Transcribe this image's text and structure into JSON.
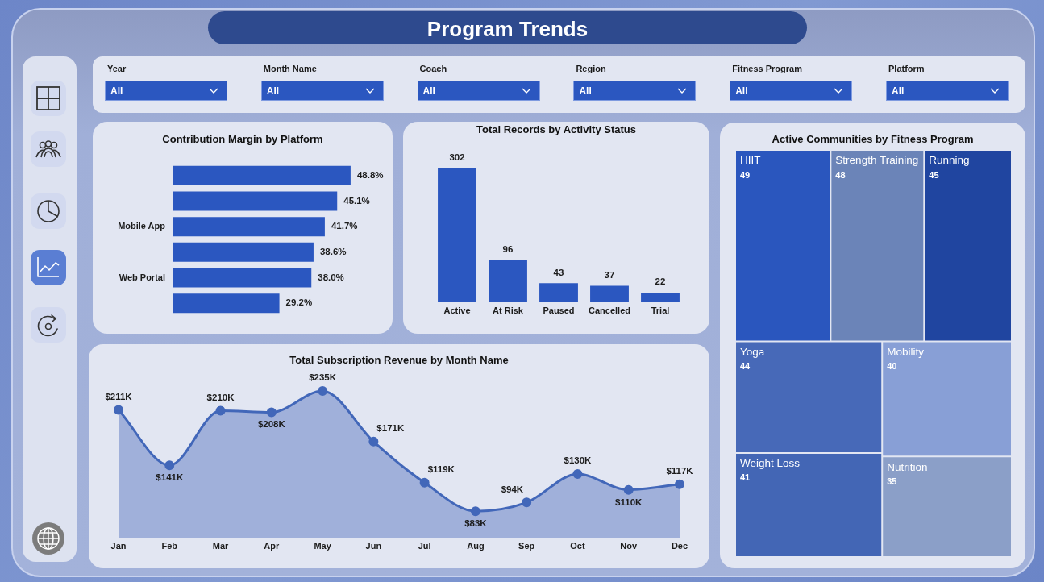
{
  "chart_data": [
    {
      "type": "other",
      "title": "Program Trends"
    },
    {
      "type": "other",
      "annotations": [
        "Year",
        "All",
        "Month Name",
        "All",
        "Coach",
        "All",
        "Region",
        "All",
        "Fitness Program",
        "All",
        "Platform",
        "All"
      ]
    },
    {
      "type": "bar",
      "orientation": "horizontal",
      "title": "Contribution Margin by Platform",
      "categories": [
        null,
        null,
        "Mobile App",
        null,
        "Web Portal",
        null
      ],
      "values": [
        48.8,
        45.1,
        41.7,
        38.6,
        38.0,
        29.2
      ],
      "value_labels": [
        "48.8%",
        "45.1%",
        "41.7%",
        "38.6%",
        "38.0%",
        "29.2%"
      ],
      "color": "#2b57c0",
      "tick_labels": "y"
    },
    {
      "type": "bar",
      "title": "Total Records by Activity Status",
      "categories": [
        "Active",
        "At Risk",
        "Paused",
        "Cancelled",
        "Trial"
      ],
      "values": [
        302,
        96,
        43,
        37,
        22
      ],
      "color": "#2b57c0",
      "data_labels": true,
      "tick_labels": "x"
    },
    {
      "type": "other",
      "title": "Active Communities by Fitness Program",
      "categories": [
        "HIIT",
        "Strength Training",
        "Running",
        "Yoga",
        "Weight Loss",
        "Mobility",
        "Nutrition"
      ],
      "values": [
        49,
        48,
        45,
        44,
        41,
        40,
        35
      ],
      "colors": [
        "#2a56be",
        "#6b84b8",
        "#2045a0",
        "#4769b8",
        "#4366b5",
        "#889fd6",
        "#8b9fc8"
      ],
      "data_labels": true
    },
    {
      "type": "area",
      "title": "Total Subscription Revenue by Month Name",
      "categories": [
        "Jan",
        "Feb",
        "Mar",
        "Apr",
        "May",
        "Jun",
        "Jul",
        "Aug",
        "Sep",
        "Oct",
        "Nov",
        "Dec"
      ],
      "values": [
        211,
        141,
        210,
        208,
        235,
        171,
        119,
        83,
        94,
        130,
        110,
        117
      ],
      "value_labels": [
        "$211K",
        "$141K",
        "$210K",
        "$208K",
        "$235K",
        "$171K",
        "$119K",
        "$83K",
        "$94K",
        "$130K",
        "$110K",
        "$117K"
      ],
      "color": "#4267b9",
      "marker": "circle",
      "tick_labels": "x"
    }
  ]
}
